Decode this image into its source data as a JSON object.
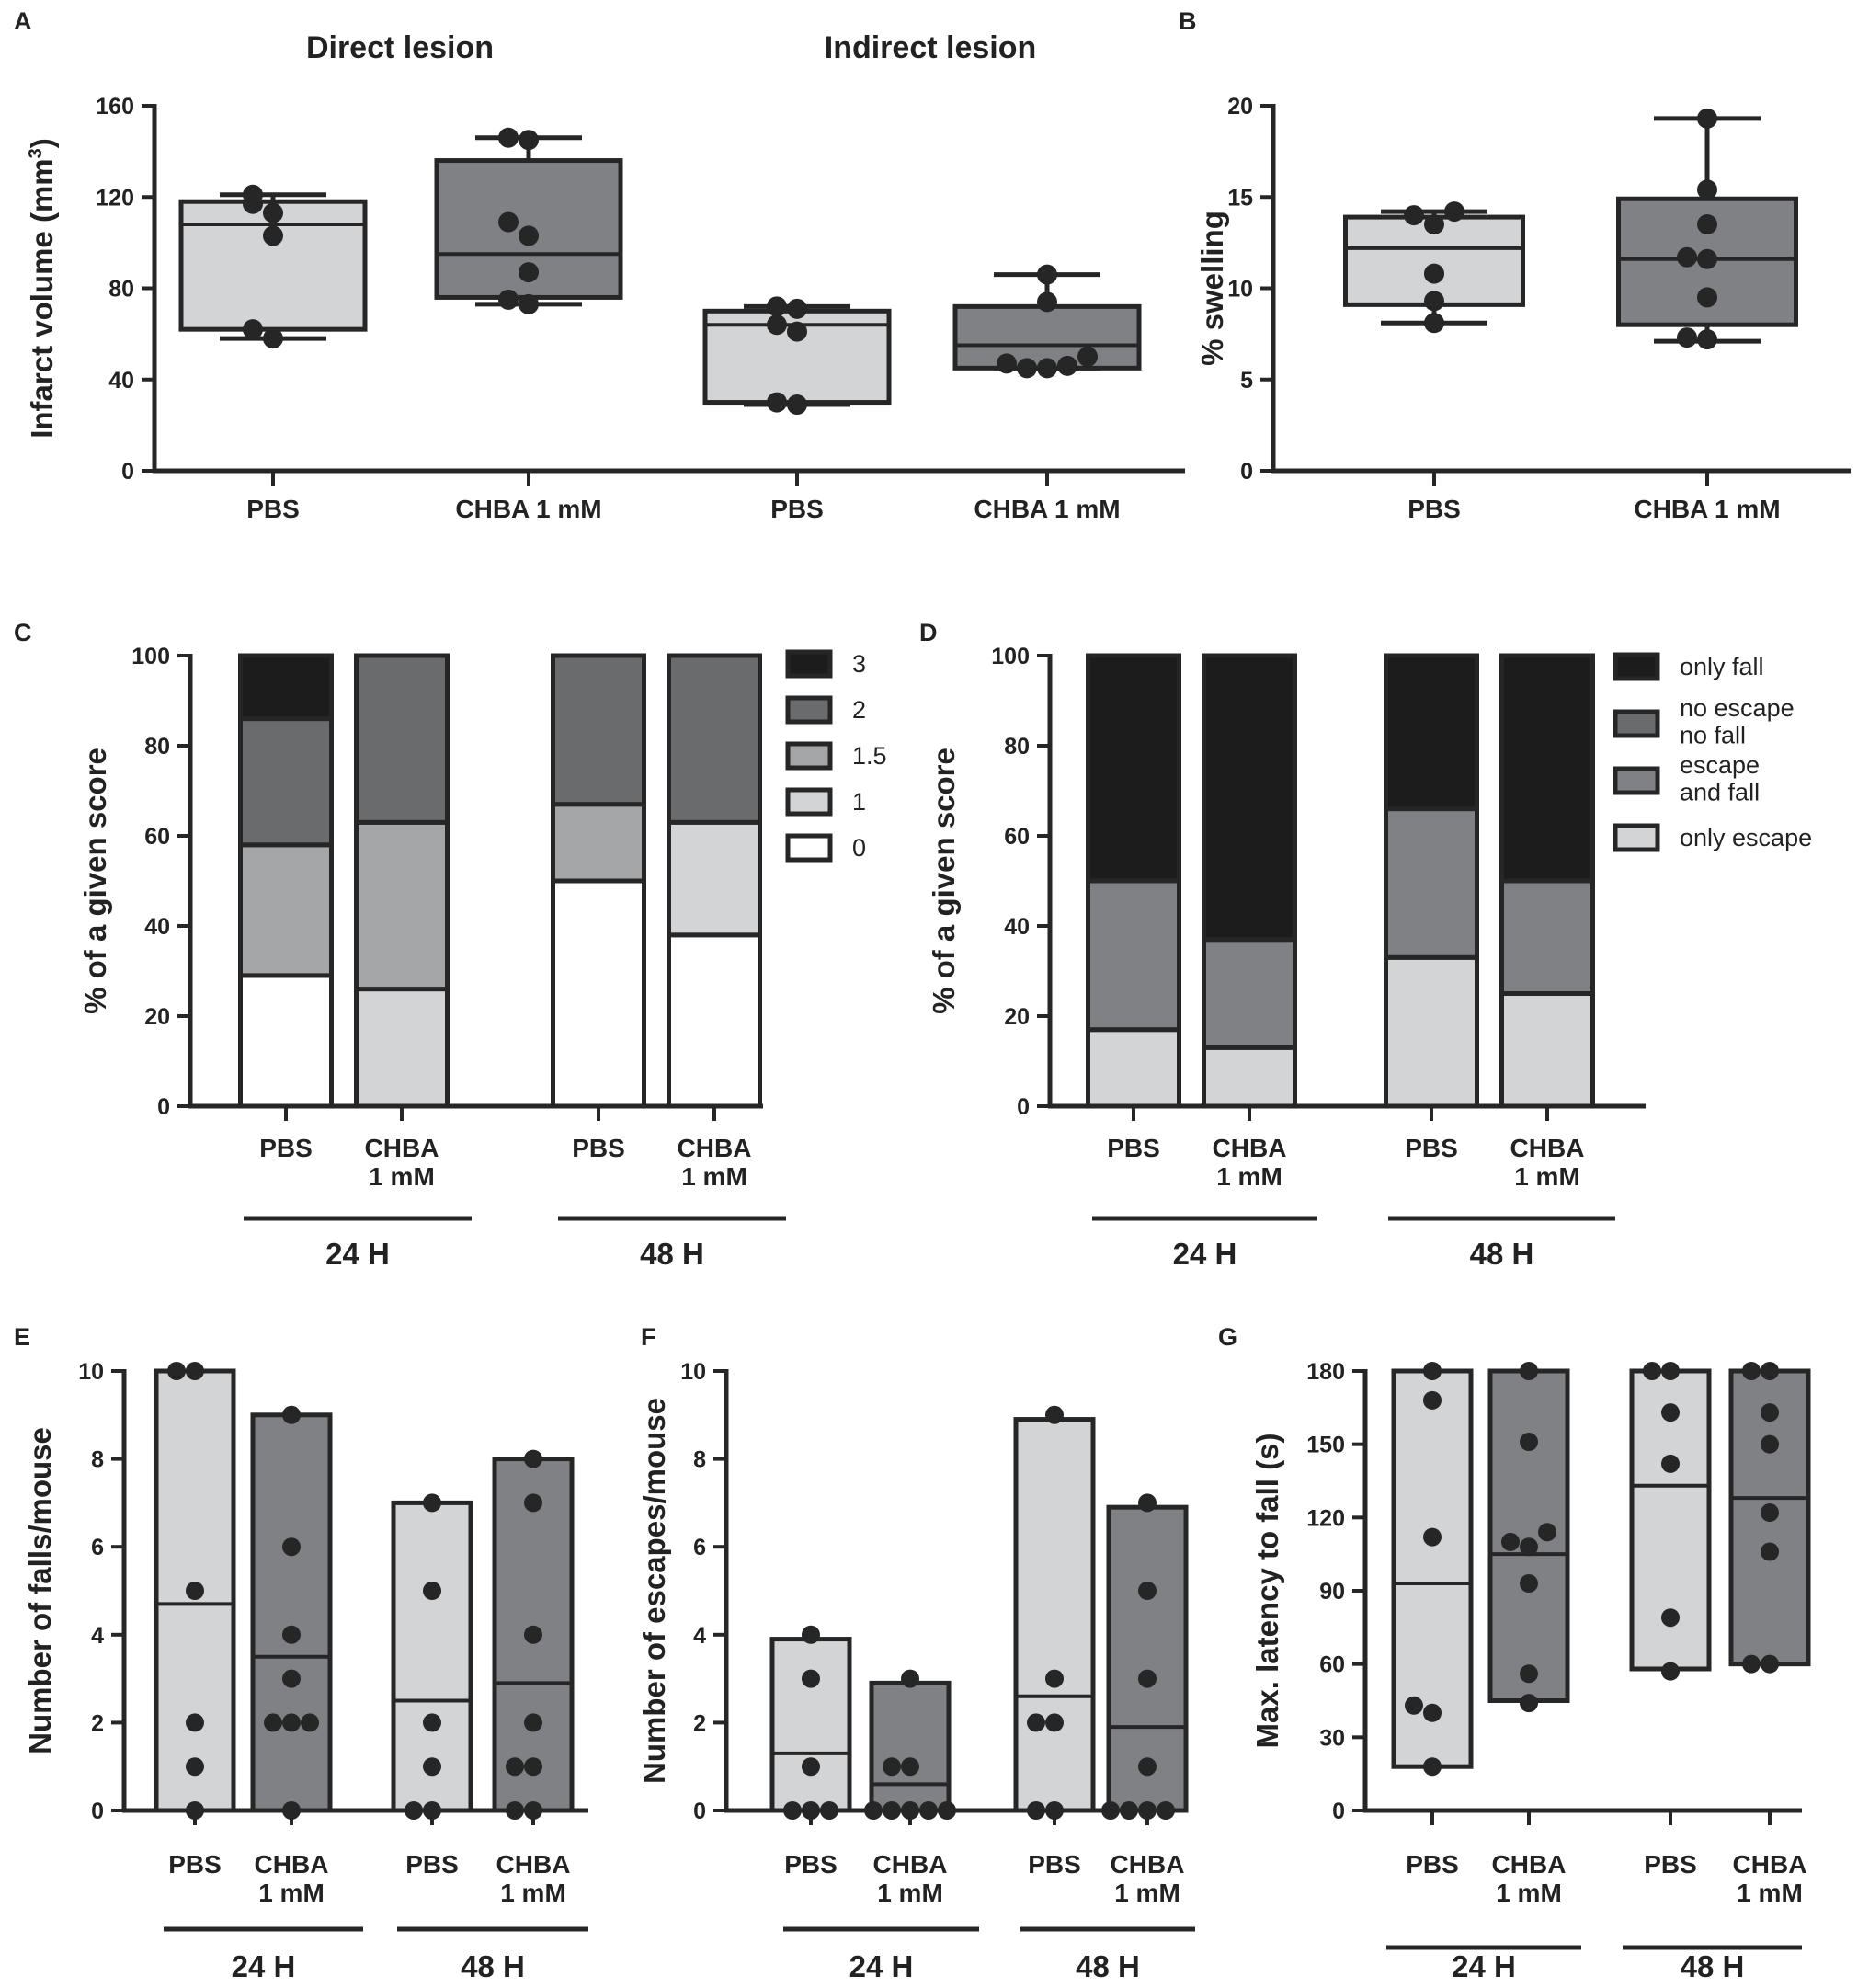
{
  "colors": {
    "light": "#d3d4d5",
    "mid": "#a5a6a8",
    "dark": "#808184",
    "darker": "#6a6b6d",
    "black": "#1c1c1c",
    "white": "#ffffff",
    "ink": "#262626"
  },
  "chart_data": [
    {
      "panel": "A",
      "type": "box",
      "titles": [
        "Direct lesion",
        "Indirect lesion"
      ],
      "ylabel": "Infarct volume (mm³)",
      "ylim": [
        0,
        160
      ],
      "yticks": [
        0,
        40,
        80,
        120,
        160
      ],
      "categories": [
        "PBS",
        "CHBA 1 mM",
        "PBS",
        "CHBA 1 mM"
      ],
      "boxes": [
        {
          "q1": 62,
          "median": 108,
          "q3": 118,
          "min": 58,
          "max": 121,
          "points": [
            58,
            62,
            103,
            113,
            117,
            121
          ],
          "fill": "light"
        },
        {
          "q1": 76,
          "median": 95,
          "q3": 136,
          "min": 73,
          "max": 146,
          "points": [
            73,
            75,
            87,
            103,
            109,
            145,
            146
          ],
          "fill": "dark"
        },
        {
          "q1": 30,
          "median": 64,
          "q3": 70,
          "min": 29,
          "max": 72,
          "points": [
            29,
            30,
            61,
            64,
            71,
            72
          ],
          "fill": "light"
        },
        {
          "q1": 45,
          "median": 55,
          "q3": 72,
          "min": 45,
          "max": 86,
          "points": [
            45,
            45,
            46,
            47,
            50,
            74,
            86
          ],
          "fill": "dark"
        }
      ]
    },
    {
      "panel": "B",
      "type": "box",
      "ylabel": "% swelling",
      "ylim": [
        0,
        20
      ],
      "yticks": [
        0,
        5,
        10,
        15,
        20
      ],
      "categories": [
        "PBS",
        "CHBA 1 mM"
      ],
      "boxes": [
        {
          "q1": 9.1,
          "median": 12.2,
          "q3": 13.9,
          "min": 8.1,
          "max": 14.2,
          "points": [
            8.1,
            9.3,
            10.8,
            13.5,
            14.0,
            14.2
          ],
          "fill": "light"
        },
        {
          "q1": 8.0,
          "median": 11.6,
          "q3": 14.9,
          "min": 7.1,
          "max": 19.3,
          "points": [
            7.2,
            7.3,
            9.5,
            11.6,
            11.7,
            13.5,
            15.4,
            19.3
          ],
          "fill": "dark"
        }
      ]
    },
    {
      "panel": "C",
      "type": "stacked-bar",
      "ylabel": "% of a given score",
      "ylim": [
        0,
        100
      ],
      "yticks": [
        0,
        20,
        40,
        60,
        80,
        100
      ],
      "categories": [
        "PBS",
        "CHBA\n1 mM",
        "PBS",
        "CHBA\n1 mM"
      ],
      "groups": [
        "24 H",
        "48 H"
      ],
      "legend": [
        "3",
        "2",
        "1.5",
        "1",
        "0"
      ],
      "series": [
        {
          "name": "0",
          "values": [
            29,
            0,
            50,
            38
          ],
          "fill": "white"
        },
        {
          "name": "1",
          "values": [
            0,
            26,
            0,
            25
          ],
          "fill": "light"
        },
        {
          "name": "1.5",
          "values": [
            29,
            37,
            17,
            0
          ],
          "fill": "mid"
        },
        {
          "name": "2",
          "values": [
            28,
            37,
            33,
            37
          ],
          "fill": "darker"
        },
        {
          "name": "3",
          "values": [
            14,
            0,
            0,
            0
          ],
          "fill": "black"
        }
      ]
    },
    {
      "panel": "D",
      "type": "stacked-bar",
      "ylabel": "% of a given score",
      "ylim": [
        0,
        100
      ],
      "yticks": [
        0,
        20,
        40,
        60,
        80,
        100
      ],
      "categories": [
        "PBS",
        "CHBA\n1 mM",
        "PBS",
        "CHBA\n1 mM"
      ],
      "groups": [
        "24 H",
        "48 H"
      ],
      "legend": [
        "only fall",
        "no escape\nno fall",
        "escape\nand fall",
        "only escape"
      ],
      "series": [
        {
          "name": "only escape",
          "values": [
            17,
            13,
            33,
            25
          ],
          "fill": "light"
        },
        {
          "name": "escape and fall",
          "values": [
            33,
            24,
            33,
            25
          ],
          "fill": "dark"
        },
        {
          "name": "no escape no fall",
          "values": [
            0,
            0,
            0,
            0
          ],
          "fill": "darker"
        },
        {
          "name": "only fall",
          "values": [
            50,
            63,
            34,
            50
          ],
          "fill": "black"
        }
      ]
    },
    {
      "panel": "E",
      "type": "floating-bar",
      "ylabel": "Number of falls/mouse",
      "ylim": [
        0,
        10
      ],
      "yticks": [
        0,
        2,
        4,
        6,
        8,
        10
      ],
      "categories": [
        "PBS",
        "CHBA\n1 mM",
        "PBS",
        "CHBA\n1 mM"
      ],
      "groups": [
        "24 H",
        "48 H"
      ],
      "bars": [
        {
          "min": 0,
          "max": 10,
          "mean": 4.7,
          "points": [
            0,
            1,
            2,
            5,
            10,
            10
          ],
          "fill": "light"
        },
        {
          "min": 0,
          "max": 9,
          "mean": 3.5,
          "points": [
            0,
            2,
            2,
            2,
            3,
            4,
            6,
            9
          ],
          "fill": "dark"
        },
        {
          "min": 0,
          "max": 7,
          "mean": 2.5,
          "points": [
            0,
            0,
            1,
            2,
            5,
            7
          ],
          "fill": "light"
        },
        {
          "min": 0,
          "max": 8,
          "mean": 2.9,
          "points": [
            0,
            0,
            1,
            1,
            2,
            4,
            7,
            8
          ],
          "fill": "dark"
        }
      ]
    },
    {
      "panel": "F",
      "type": "floating-bar",
      "ylabel": "Number of escapes/mouse",
      "ylim": [
        0,
        10
      ],
      "yticks": [
        0,
        2,
        4,
        6,
        8,
        10
      ],
      "categories": [
        "PBS",
        "CHBA\n1 mM",
        "PBS",
        "CHBA\n1 mM"
      ],
      "groups": [
        "24 H",
        "48 H"
      ],
      "bars": [
        {
          "min": 0,
          "max": 3.9,
          "mean": 1.3,
          "points": [
            0,
            0,
            0,
            1,
            3,
            4
          ],
          "fill": "light"
        },
        {
          "min": 0,
          "max": 2.9,
          "mean": 0.6,
          "points": [
            0,
            0,
            0,
            0,
            0,
            1,
            1,
            3
          ],
          "fill": "dark"
        },
        {
          "min": 0,
          "max": 8.9,
          "mean": 2.6,
          "points": [
            0,
            0,
            2,
            2,
            3,
            9
          ],
          "fill": "light"
        },
        {
          "min": 0,
          "max": 6.9,
          "mean": 1.9,
          "points": [
            0,
            0,
            0,
            0,
            1,
            3,
            5,
            7
          ],
          "fill": "dark"
        }
      ]
    },
    {
      "panel": "G",
      "type": "floating-bar",
      "ylabel": "Max. latency to fall (s)",
      "ylim": [
        0,
        180
      ],
      "yticks": [
        0,
        30,
        60,
        90,
        120,
        150,
        180
      ],
      "categories": [
        "PBS",
        "CHBA\n1 mM",
        "PBS",
        "CHBA\n1 mM"
      ],
      "groups": [
        "24 H",
        "48 H"
      ],
      "bars": [
        {
          "min": 18,
          "max": 180,
          "mean": 93,
          "points": [
            18,
            40,
            43,
            112,
            168,
            180
          ],
          "fill": "light"
        },
        {
          "min": 45,
          "max": 180,
          "mean": 105,
          "points": [
            44,
            56,
            93,
            108,
            110,
            114,
            151,
            180
          ],
          "fill": "dark"
        },
        {
          "min": 58,
          "max": 180,
          "mean": 133,
          "points": [
            57,
            79,
            142,
            163,
            180,
            180
          ],
          "fill": "light"
        },
        {
          "min": 60,
          "max": 180,
          "mean": 128,
          "points": [
            60,
            60,
            106,
            122,
            150,
            163,
            180,
            180
          ],
          "fill": "dark"
        }
      ]
    }
  ]
}
